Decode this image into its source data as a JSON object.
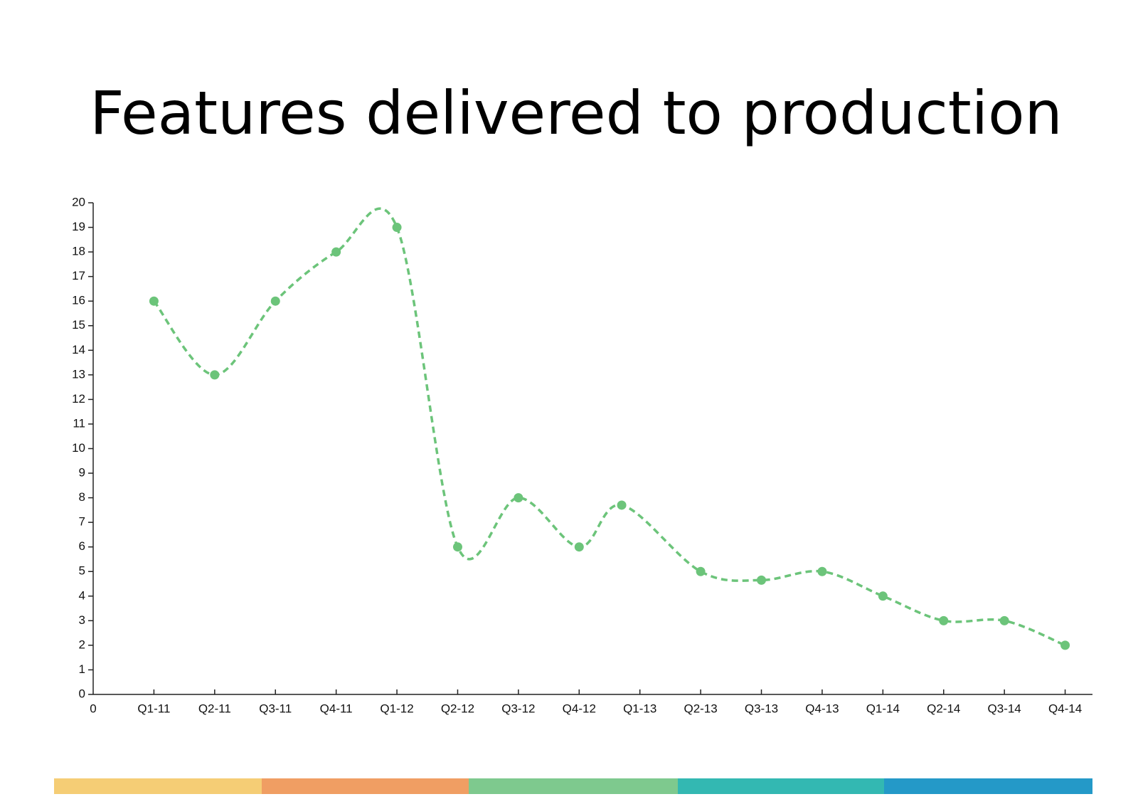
{
  "chart_data": {
    "type": "line",
    "title": "Features delivered to production",
    "x": [
      1,
      2,
      3,
      4,
      5,
      6,
      7,
      8,
      8.7,
      10,
      11,
      12,
      13,
      14,
      15,
      16
    ],
    "values": [
      16,
      13,
      16,
      18,
      19,
      6,
      8,
      6,
      7.7,
      5,
      4.65,
      5,
      4,
      3,
      3,
      2
    ],
    "color": "#6cc47a",
    "line_style": "dashed",
    "smooth": true,
    "xlim": [
      0,
      16.45
    ],
    "xticks": [
      0,
      {
        "value": 1,
        "label": "Q1-11"
      },
      {
        "value": 2,
        "label": "Q2-11"
      },
      {
        "value": 3,
        "label": "Q3-11"
      },
      {
        "value": 4,
        "label": "Q4-11"
      },
      {
        "value": 5,
        "label": "Q1-12"
      },
      {
        "value": 6,
        "label": "Q2-12"
      },
      {
        "value": 7,
        "label": "Q3-12"
      },
      {
        "value": 8,
        "label": "Q4-12"
      },
      {
        "value": 9,
        "label": "Q1-13"
      },
      {
        "value": 10,
        "label": "Q2-13"
      },
      {
        "value": 11,
        "label": "Q3-13"
      },
      {
        "value": 12,
        "label": "Q4-13"
      },
      {
        "value": 13,
        "label": "Q1-14"
      },
      {
        "value": 14,
        "label": "Q2-14"
      },
      {
        "value": 15,
        "label": "Q3-14"
      },
      {
        "value": 16,
        "label": "Q4-14"
      }
    ],
    "ylim": [
      0,
      20
    ],
    "yticks": [
      0,
      1,
      2,
      3,
      4,
      5,
      6,
      7,
      8,
      9,
      10,
      11,
      12,
      13,
      14,
      15,
      16,
      17,
      18,
      19,
      20
    ],
    "grid": false
  }
}
